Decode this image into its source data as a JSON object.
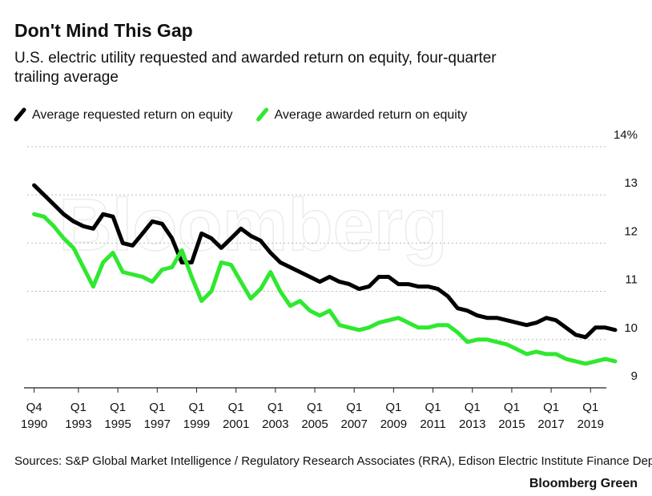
{
  "chart_data": {
    "type": "line",
    "title": "Don't Mind This Gap",
    "subtitle": "U.S. electric utility requested and awarded return on equity, four-quarter trailing average",
    "watermark": "Bloomberg",
    "source": "Sources: S&P Global Market Intelligence / Regulatory Research Associates (RRA), Edison Electric Institute Finance Department",
    "brand": "Bloomberg Green",
    "x": [
      1990.75,
      1991.25,
      1991.75,
      1992.25,
      1992.75,
      1993.25,
      1993.75,
      1994.25,
      1994.75,
      1995.25,
      1995.75,
      1996.25,
      1996.75,
      1997.25,
      1997.75,
      1998.25,
      1998.75,
      1999.25,
      1999.75,
      2000.25,
      2000.75,
      2001.25,
      2001.75,
      2002.25,
      2002.75,
      2003.25,
      2003.75,
      2004.25,
      2004.75,
      2005.25,
      2005.75,
      2006.25,
      2006.75,
      2007.25,
      2007.75,
      2008.25,
      2008.75,
      2009.25,
      2009.75,
      2010.25,
      2010.75,
      2011.25,
      2011.75,
      2012.25,
      2012.75,
      2013.25,
      2013.75,
      2014.25,
      2014.75,
      2015.25,
      2015.75,
      2016.25,
      2016.75,
      2017.25,
      2017.75,
      2018.25,
      2018.75,
      2019.25,
      2019.75,
      2020.25
    ],
    "series": [
      {
        "name": "Average requested return on equity",
        "color": "#000000",
        "values": [
          13.2,
          13.0,
          12.8,
          12.6,
          12.45,
          12.35,
          12.3,
          12.6,
          12.55,
          12.0,
          11.95,
          12.2,
          12.45,
          12.4,
          12.1,
          11.6,
          11.6,
          12.2,
          12.1,
          11.9,
          12.1,
          12.3,
          12.15,
          12.05,
          11.8,
          11.6,
          11.5,
          11.4,
          11.3,
          11.2,
          11.3,
          11.2,
          11.15,
          11.05,
          11.1,
          11.3,
          11.3,
          11.15,
          11.15,
          11.1,
          11.1,
          11.05,
          10.9,
          10.65,
          10.6,
          10.5,
          10.45,
          10.45,
          10.4,
          10.35,
          10.3,
          10.35,
          10.45,
          10.4,
          10.25,
          10.1,
          10.05,
          10.25,
          10.25,
          10.2
        ]
      },
      {
        "name": "Average awarded return on equity",
        "color": "#2fe82f",
        "values": [
          12.6,
          12.55,
          12.35,
          12.1,
          11.9,
          11.5,
          11.1,
          11.6,
          11.8,
          11.4,
          11.35,
          11.3,
          11.2,
          11.45,
          11.5,
          11.85,
          11.3,
          10.8,
          11.0,
          11.6,
          11.55,
          11.2,
          10.85,
          11.05,
          11.4,
          11.0,
          10.7,
          10.8,
          10.6,
          10.5,
          10.6,
          10.3,
          10.25,
          10.2,
          10.25,
          10.35,
          10.4,
          10.45,
          10.35,
          10.25,
          10.25,
          10.3,
          10.3,
          10.15,
          9.95,
          10.0,
          10.0,
          9.95,
          9.9,
          9.8,
          9.7,
          9.75,
          9.7,
          9.7,
          9.6,
          9.55,
          9.5,
          9.55,
          9.6,
          9.55
        ]
      }
    ],
    "xlim": [
      1990.4,
      2020.9
    ],
    "xticks": [
      {
        "value": 1990.75,
        "label": [
          "Q4",
          "1990"
        ]
      },
      {
        "value": 1993,
        "label": [
          "Q1",
          "1993"
        ]
      },
      {
        "value": 1995,
        "label": [
          "Q1",
          "1995"
        ]
      },
      {
        "value": 1997,
        "label": [
          "Q1",
          "1997"
        ]
      },
      {
        "value": 1999,
        "label": [
          "Q1",
          "1999"
        ]
      },
      {
        "value": 2001,
        "label": [
          "Q1",
          "2001"
        ]
      },
      {
        "value": 2003,
        "label": [
          "Q1",
          "2003"
        ]
      },
      {
        "value": 2005,
        "label": [
          "Q1",
          "2005"
        ]
      },
      {
        "value": 2007,
        "label": [
          "Q1",
          "2007"
        ]
      },
      {
        "value": 2009,
        "label": [
          "Q1",
          "2009"
        ]
      },
      {
        "value": 2011,
        "label": [
          "Q1",
          "2011"
        ]
      },
      {
        "value": 2013,
        "label": [
          "Q1",
          "2013"
        ]
      },
      {
        "value": 2015,
        "label": [
          "Q1",
          "2015"
        ]
      },
      {
        "value": 2017,
        "label": [
          "Q1",
          "2017"
        ]
      },
      {
        "value": 2019,
        "label": [
          "Q1",
          "2019"
        ]
      }
    ],
    "ylim": [
      9,
      14
    ],
    "yticks": [
      9,
      10,
      11,
      12,
      13,
      {
        "value": 14,
        "label": "14%"
      }
    ],
    "grid": true,
    "legend": "top"
  }
}
